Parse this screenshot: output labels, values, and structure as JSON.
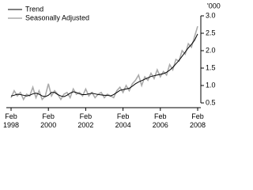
{
  "chart_data": {
    "type": "line",
    "y_label": "'000",
    "x": [
      "1998-02",
      "1998-04",
      "1998-06",
      "1998-08",
      "1998-10",
      "1998-12",
      "1999-02",
      "1999-04",
      "1999-06",
      "1999-08",
      "1999-10",
      "1999-12",
      "2000-02",
      "2000-04",
      "2000-06",
      "2000-08",
      "2000-10",
      "2000-12",
      "2001-02",
      "2001-04",
      "2001-06",
      "2001-08",
      "2001-10",
      "2001-12",
      "2002-02",
      "2002-04",
      "2002-06",
      "2002-08",
      "2002-10",
      "2002-12",
      "2003-02",
      "2003-04",
      "2003-06",
      "2003-08",
      "2003-10",
      "2003-12",
      "2004-02",
      "2004-04",
      "2004-06",
      "2004-08",
      "2004-10",
      "2004-12",
      "2005-02",
      "2005-04",
      "2005-06",
      "2005-08",
      "2005-10",
      "2005-12",
      "2006-02",
      "2006-04",
      "2006-06",
      "2006-08",
      "2006-10",
      "2006-12",
      "2007-02",
      "2007-04",
      "2007-06",
      "2007-08",
      "2007-10",
      "2007-12",
      "2008-02"
    ],
    "series": [
      {
        "name": "Trend",
        "color": "#000000",
        "values": [
          0.7,
          0.72,
          0.75,
          0.74,
          0.72,
          0.7,
          0.72,
          0.76,
          0.78,
          0.75,
          0.7,
          0.68,
          0.72,
          0.8,
          0.8,
          0.74,
          0.7,
          0.68,
          0.72,
          0.78,
          0.82,
          0.8,
          0.76,
          0.74,
          0.74,
          0.76,
          0.78,
          0.76,
          0.74,
          0.73,
          0.72,
          0.72,
          0.7,
          0.74,
          0.8,
          0.86,
          0.88,
          0.9,
          0.92,
          0.98,
          1.05,
          1.1,
          1.14,
          1.18,
          1.22,
          1.26,
          1.28,
          1.3,
          1.32,
          1.34,
          1.38,
          1.44,
          1.52,
          1.62,
          1.72,
          1.84,
          1.96,
          2.08,
          2.18,
          2.3,
          2.48
        ]
      },
      {
        "name": "Seasonally Adjusted",
        "color": "#aaaaaa",
        "values": [
          0.65,
          0.85,
          0.7,
          0.8,
          0.6,
          0.75,
          0.7,
          0.95,
          0.65,
          0.85,
          0.6,
          0.7,
          1.05,
          0.7,
          0.85,
          0.75,
          0.6,
          0.75,
          0.8,
          0.65,
          0.9,
          0.75,
          0.8,
          0.7,
          0.9,
          0.7,
          0.8,
          0.65,
          0.75,
          0.8,
          0.65,
          0.75,
          0.7,
          0.65,
          0.85,
          0.95,
          0.8,
          1.0,
          0.85,
          1.05,
          1.15,
          1.3,
          1.0,
          1.25,
          1.15,
          1.35,
          1.2,
          1.45,
          1.25,
          1.4,
          1.3,
          1.6,
          1.45,
          1.75,
          1.7,
          2.0,
          1.9,
          2.2,
          2.1,
          2.4,
          2.7
        ]
      }
    ],
    "ylim": [
      0.5,
      3.0
    ],
    "yticks": [
      0.5,
      {
        "value": 1.0,
        "label": "1.0"
      },
      1.5,
      {
        "value": 2.0,
        "label": "2.0"
      },
      2.5,
      {
        "value": 3.0,
        "label": "3.0"
      }
    ],
    "xticks": [
      {
        "value": "1998-02",
        "label": "Feb\n1998"
      },
      {
        "value": "2000-02",
        "label": "Feb\n2000"
      },
      {
        "value": "2002-02",
        "label": "Feb\n2002"
      },
      {
        "value": "2004-02",
        "label": "Feb\n2004"
      },
      {
        "value": "2006-02",
        "label": "Feb\n2006"
      },
      {
        "value": "2008-02",
        "label": "Feb\n2008"
      }
    ]
  }
}
